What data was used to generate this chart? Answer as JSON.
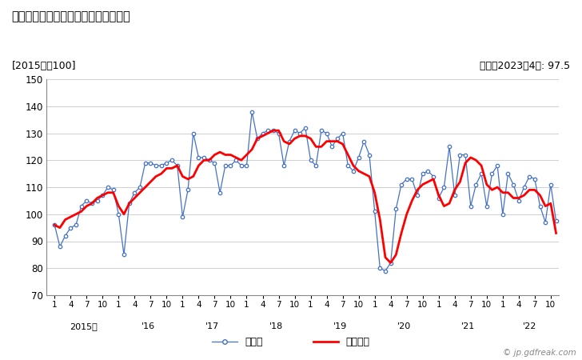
{
  "title": "粉末冶金製磁性材料の出荷指数の推移",
  "subtitle_left": "[2015年＝100]",
  "subtitle_right": "原系列2023年4月: 97.5",
  "legend_1": "原系列",
  "legend_2": "季調系列",
  "watermark": "© jp.gdfreak.com",
  "ylim": [
    70,
    150
  ],
  "yticks": [
    70,
    80,
    90,
    100,
    110,
    120,
    130,
    140,
    150
  ],
  "line1_color": "#4472c4",
  "line2_color": "#ff0000",
  "start_year": 2015,
  "start_month": 1,
  "raw_series": [
    96,
    88,
    92,
    95,
    96,
    103,
    105,
    104,
    105,
    107,
    110,
    109,
    100,
    85,
    104,
    108,
    110,
    119,
    119,
    118,
    118,
    119,
    120,
    118,
    99,
    109,
    130,
    121,
    121,
    120,
    119,
    108,
    118,
    118,
    120,
    118,
    118,
    138,
    128,
    130,
    131,
    131,
    130,
    118,
    127,
    131,
    130,
    132,
    120,
    118,
    131,
    130,
    125,
    128,
    130,
    118,
    116,
    121,
    127,
    122,
    101,
    80,
    79,
    82,
    102,
    111,
    113,
    113,
    107,
    115,
    116,
    114,
    106,
    110,
    125,
    107,
    122,
    122,
    103,
    111,
    115,
    103,
    115,
    118,
    100,
    115,
    111,
    105,
    110,
    114,
    113,
    103,
    97,
    111,
    97.5
  ],
  "seasonal_series": [
    96,
    95,
    98,
    99,
    100,
    101,
    103,
    104,
    106,
    107,
    108,
    108,
    103,
    100,
    104,
    106,
    108,
    110,
    112,
    114,
    115,
    117,
    117,
    118,
    114,
    113,
    114,
    118,
    120,
    120,
    122,
    123,
    122,
    122,
    121,
    120,
    122,
    124,
    128,
    129,
    130,
    131,
    131,
    127,
    126,
    128,
    129,
    129,
    128,
    125,
    125,
    127,
    127,
    127,
    126,
    122,
    118,
    116,
    115,
    114,
    108,
    98,
    84,
    82,
    85,
    93,
    100,
    105,
    109,
    111,
    112,
    113,
    107,
    103,
    104,
    109,
    112,
    119,
    121,
    120,
    118,
    111,
    109,
    110,
    108,
    108,
    106,
    106,
    107,
    109,
    109,
    107,
    103,
    104,
    93
  ],
  "year_label_map": {
    "2015": "2015年",
    "2016": "'16",
    "2017": "'17",
    "2018": "'18",
    "2019": "'19",
    "2020": "'20",
    "2021": "'21",
    "2022": "'22"
  }
}
